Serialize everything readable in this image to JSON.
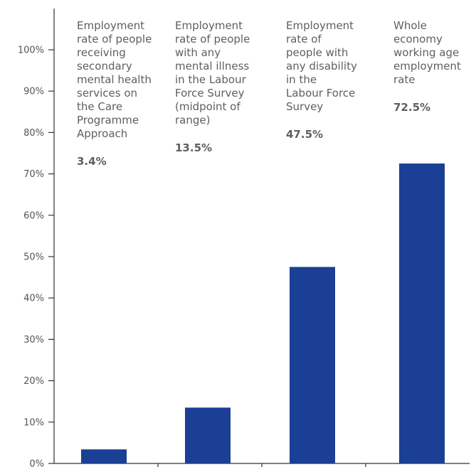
{
  "chart_data": {
    "type": "bar",
    "categories": [
      "Employment rate of people receiving secondary mental health services on the Care Programme Approach",
      "Employment rate of people with any mental illness in the Labour Force Survey (midpoint of range)",
      "Employment rate of people with any disability in the Labour Force Survey",
      "Whole economy working age employment rate"
    ],
    "category_lines": [
      [
        "Employment",
        "rate of people",
        "receiving",
        "secondary",
        "mental health",
        "services on",
        "the Care",
        "Programme",
        "Approach"
      ],
      [
        "Employment",
        "rate of people",
        "with any",
        "mental illness",
        "in the Labour",
        "Force Survey",
        "(midpoint of",
        "range)"
      ],
      [
        "Employment",
        "rate of",
        "people with",
        "any disability",
        "in the",
        "Labour Force",
        "Survey"
      ],
      [
        "Whole",
        "economy",
        "working age",
        "employment",
        "rate"
      ]
    ],
    "values": [
      3.4,
      13.5,
      47.5,
      72.5
    ],
    "value_labels": [
      "3.4%",
      "13.5%",
      "47.5%",
      "72.5%"
    ],
    "ylim": [
      0,
      100
    ],
    "yticks": [
      0,
      10,
      20,
      30,
      40,
      50,
      60,
      70,
      80,
      90,
      100
    ],
    "ytick_labels": [
      "0%",
      "10%",
      "20%",
      "30%",
      "40%",
      "50%",
      "60%",
      "70%",
      "80%",
      "90%",
      "100%"
    ],
    "grid": false,
    "title": "",
    "xlabel": "",
    "ylabel": "",
    "colors": {
      "bar": "#1b3f95",
      "axis": "#333333",
      "text": "#5f5f5f"
    }
  }
}
